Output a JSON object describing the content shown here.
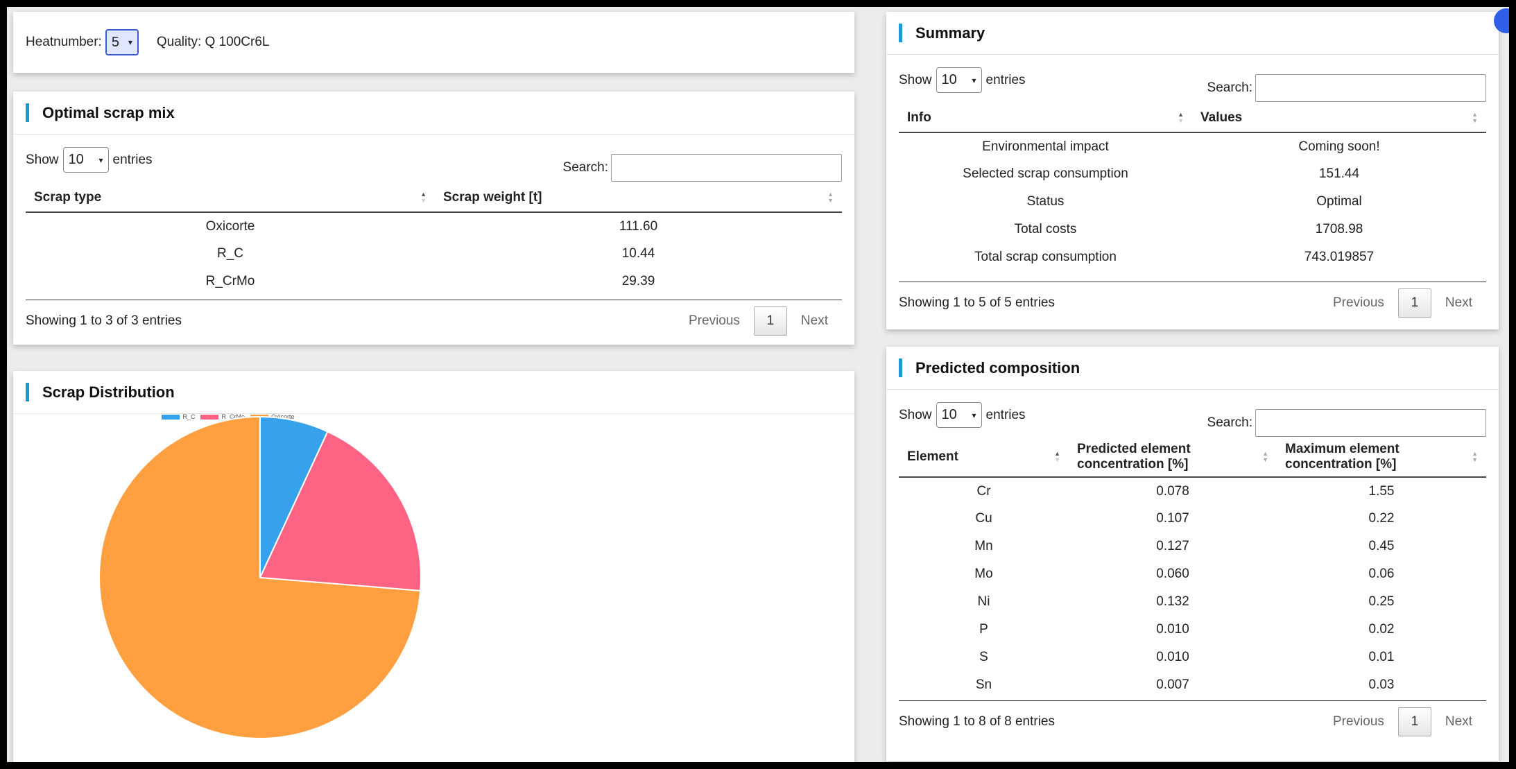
{
  "header": {
    "heat_label": "Heatnumber:",
    "heat_value": "5",
    "quality_text": "Quality: Q 100Cr6L"
  },
  "scrap_mix": {
    "title": "Optimal scrap mix",
    "show_label": "Show",
    "page_size": "10",
    "entries_label": "entries",
    "search_label": "Search:",
    "columns": [
      "Scrap type",
      "Scrap weight [t]"
    ],
    "rows": [
      [
        "Oxicorte",
        "111.60"
      ],
      [
        "R_C",
        "10.44"
      ],
      [
        "R_CrMo",
        "29.39"
      ]
    ],
    "info": "Showing 1 to 3 of 3 entries",
    "prev": "Previous",
    "page": "1",
    "next": "Next"
  },
  "summary": {
    "title": "Summary",
    "show_label": "Show",
    "page_size": "10",
    "entries_label": "entries",
    "search_label": "Search:",
    "columns": [
      "Info",
      "Values"
    ],
    "rows": [
      [
        "Environmental impact",
        "Coming soon!"
      ],
      [
        "Selected scrap consumption",
        "151.44"
      ],
      [
        "Status",
        "Optimal"
      ],
      [
        "Total costs",
        "1708.98"
      ],
      [
        "Total scrap consumption",
        "743.019857"
      ]
    ],
    "info": "Showing 1 to 5 of 5 entries",
    "prev": "Previous",
    "page": "1",
    "next": "Next"
  },
  "distribution": {
    "title": "Scrap Distribution"
  },
  "chart_data": {
    "type": "pie",
    "categories": [
      "R_C",
      "R_CrMo",
      "Oxicorte"
    ],
    "values": [
      10.44,
      29.39,
      111.6
    ],
    "colors": [
      "#36a2eb",
      "#ff6384",
      "#ff9f40"
    ],
    "legend_position": "top"
  },
  "composition": {
    "title": "Predicted composition",
    "show_label": "Show",
    "page_size": "10",
    "entries_label": "entries",
    "search_label": "Search:",
    "columns": [
      "Element",
      "Predicted element concentration [%]",
      "Maximum element concentration [%]"
    ],
    "rows": [
      [
        "Cr",
        "0.078",
        "1.55"
      ],
      [
        "Cu",
        "0.107",
        "0.22"
      ],
      [
        "Mn",
        "0.127",
        "0.45"
      ],
      [
        "Mo",
        "0.060",
        "0.06"
      ],
      [
        "Ni",
        "0.132",
        "0.25"
      ],
      [
        "P",
        "0.010",
        "0.02"
      ],
      [
        "S",
        "0.010",
        "0.01"
      ],
      [
        "Sn",
        "0.007",
        "0.03"
      ]
    ],
    "info": "Showing 1 to 8 of 8 entries",
    "prev": "Previous",
    "page": "1",
    "next": "Next"
  }
}
